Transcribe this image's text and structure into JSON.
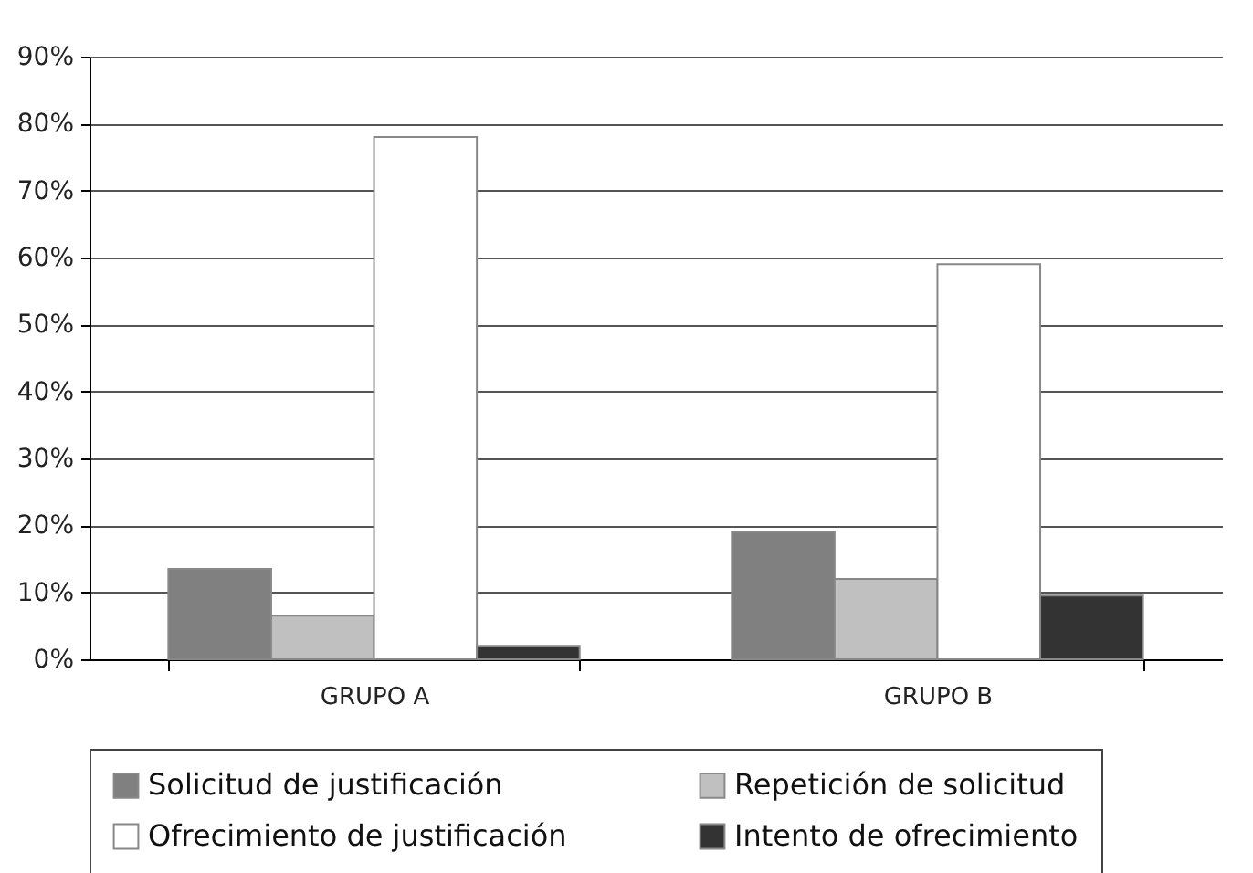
{
  "chart_data": {
    "type": "bar",
    "categories": [
      "GRUPO A",
      "GRUPO B"
    ],
    "series": [
      {
        "name": "Solicitud de justificación",
        "color": "#808080",
        "values": [
          13.5,
          19
        ]
      },
      {
        "name": "Repetición de solicitud",
        "color": "#c0c0c0",
        "values": [
          6.5,
          12
        ]
      },
      {
        "name": "Ofrecimiento de justificación",
        "color": "#ffffff",
        "values": [
          78,
          59
        ]
      },
      {
        "name": "Intento de ofrecimiento",
        "color": "#333333",
        "values": [
          2,
          9.5
        ]
      }
    ],
    "ylim": [
      0,
      90
    ],
    "yticks": [
      {
        "value": 0,
        "label": "0%"
      },
      {
        "value": 10,
        "label": "10%"
      },
      {
        "value": 20,
        "label": "20%"
      },
      {
        "value": 30,
        "label": "30%"
      },
      {
        "value": 40,
        "label": "40%"
      },
      {
        "value": 50,
        "label": "50%"
      },
      {
        "value": 60,
        "label": "60%"
      },
      {
        "value": 70,
        "label": "70%"
      },
      {
        "value": 80,
        "label": "80%"
      },
      {
        "value": 90,
        "label": "90%"
      }
    ],
    "grid": "y",
    "legend": "bottom"
  }
}
